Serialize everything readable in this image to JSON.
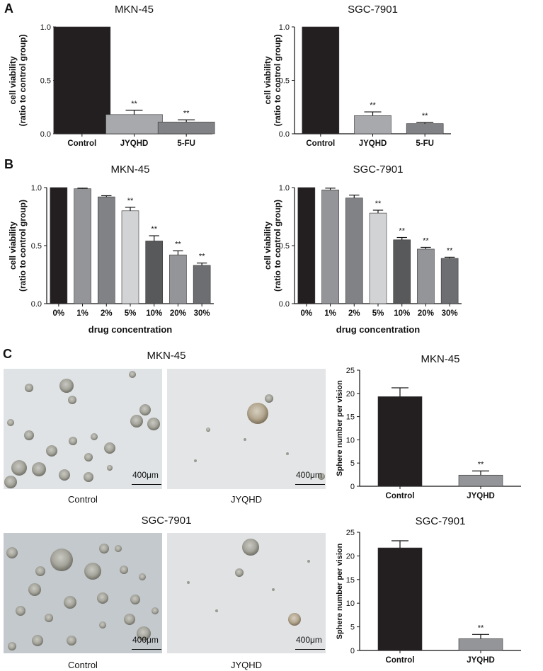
{
  "panels": {
    "a": {
      "letter": "A"
    },
    "b": {
      "letter": "B"
    },
    "c": {
      "letter": "C",
      "micro_groups": [
        {
          "title": "MKN-45",
          "captions": [
            "Control",
            "JYQHD"
          ],
          "scale_bar": "400μm"
        },
        {
          "title": "SGC-7901",
          "captions": [
            "Control",
            "JYQHD"
          ],
          "scale_bar": "400μm"
        }
      ]
    }
  },
  "chart_data": [
    {
      "type": "bar",
      "panel": "A",
      "title": "MKN-45",
      "ylabel": [
        "cell viability",
        "(ratio to control group)"
      ],
      "xlabel": "",
      "categories": [
        "Control",
        "JYQHD",
        "5-FU"
      ],
      "values": [
        1.0,
        0.18,
        0.11
      ],
      "errors": [
        0,
        0.04,
        0.02
      ],
      "significance": [
        "",
        "**",
        "**"
      ],
      "colors": [
        "#231f20",
        "#a7a9ac",
        "#808285"
      ],
      "ylim": [
        0,
        1.0
      ],
      "yticks": [
        "0.0",
        "0.5",
        "1.0"
      ]
    },
    {
      "type": "bar",
      "panel": "A",
      "title": "SGC-7901",
      "ylabel": [
        "cell viability",
        "(ratio to control group)"
      ],
      "xlabel": "",
      "categories": [
        "Control",
        "JYQHD",
        "5-FU"
      ],
      "values": [
        1.0,
        0.17,
        0.095
      ],
      "errors": [
        0,
        0.035,
        0.01
      ],
      "significance": [
        "",
        "**",
        "**"
      ],
      "colors": [
        "#231f20",
        "#a7a9ac",
        "#808285"
      ],
      "ylim": [
        0,
        1.0
      ],
      "yticks": [
        "0.0",
        "0.5",
        "1.0"
      ]
    },
    {
      "type": "bar",
      "panel": "B",
      "title": "MKN-45",
      "ylabel": [
        "cell viability",
        "(ratio to control group)"
      ],
      "xlabel": "drug concentration",
      "categories": [
        "0%",
        "1%",
        "2%",
        "5%",
        "10%",
        "20%",
        "30%"
      ],
      "values": [
        1.0,
        0.99,
        0.92,
        0.8,
        0.54,
        0.42,
        0.33
      ],
      "errors": [
        0,
        0.005,
        0.01,
        0.03,
        0.045,
        0.035,
        0.02
      ],
      "significance": [
        "",
        "",
        "",
        "**",
        "**",
        "**",
        "**"
      ],
      "colors": [
        "#231f20",
        "#939598",
        "#808285",
        "#d1d3d4",
        "#58595b",
        "#939598",
        "#6d6e71"
      ],
      "ylim": [
        0,
        1.0
      ],
      "yticks": [
        "0.0",
        "0.5",
        "1.0"
      ]
    },
    {
      "type": "bar",
      "panel": "B",
      "title": "SGC-7901",
      "ylabel": [
        "cell viability",
        "(ratio to control group)"
      ],
      "xlabel": "drug concentration",
      "categories": [
        "0%",
        "1%",
        "2%",
        "5%",
        "10%",
        "20%",
        "30%"
      ],
      "values": [
        1.0,
        0.98,
        0.91,
        0.78,
        0.55,
        0.47,
        0.39
      ],
      "errors": [
        0,
        0.015,
        0.025,
        0.025,
        0.02,
        0.015,
        0.01
      ],
      "significance": [
        "",
        "",
        "",
        "**",
        "**",
        "**",
        "**"
      ],
      "colors": [
        "#231f20",
        "#939598",
        "#808285",
        "#d1d3d4",
        "#58595b",
        "#939598",
        "#6d6e71"
      ],
      "ylim": [
        0,
        1.0
      ],
      "yticks": [
        "0.0",
        "0.5",
        "1.0"
      ]
    },
    {
      "type": "bar",
      "panel": "C",
      "title": "MKN-45",
      "ylabel": [
        "Sphere number per vision"
      ],
      "xlabel": "",
      "categories": [
        "Control",
        "JYQHD"
      ],
      "values": [
        19.3,
        2.4
      ],
      "errors": [
        1.9,
        0.9
      ],
      "significance": [
        "",
        "**"
      ],
      "colors": [
        "#231f20",
        "#939598"
      ],
      "ylim": [
        0,
        25
      ],
      "yticks": [
        "0",
        "5",
        "10",
        "15",
        "20",
        "25"
      ]
    },
    {
      "type": "bar",
      "panel": "C",
      "title": "SGC-7901",
      "ylabel": [
        "Sphere number per vision"
      ],
      "xlabel": "",
      "categories": [
        "Control",
        "JYQHD"
      ],
      "values": [
        21.7,
        2.5
      ],
      "errors": [
        1.5,
        0.9
      ],
      "significance": [
        "",
        "**"
      ],
      "colors": [
        "#231f20",
        "#939598"
      ],
      "ylim": [
        0,
        25
      ],
      "yticks": [
        "0",
        "5",
        "10",
        "15",
        "20",
        "25"
      ]
    }
  ]
}
